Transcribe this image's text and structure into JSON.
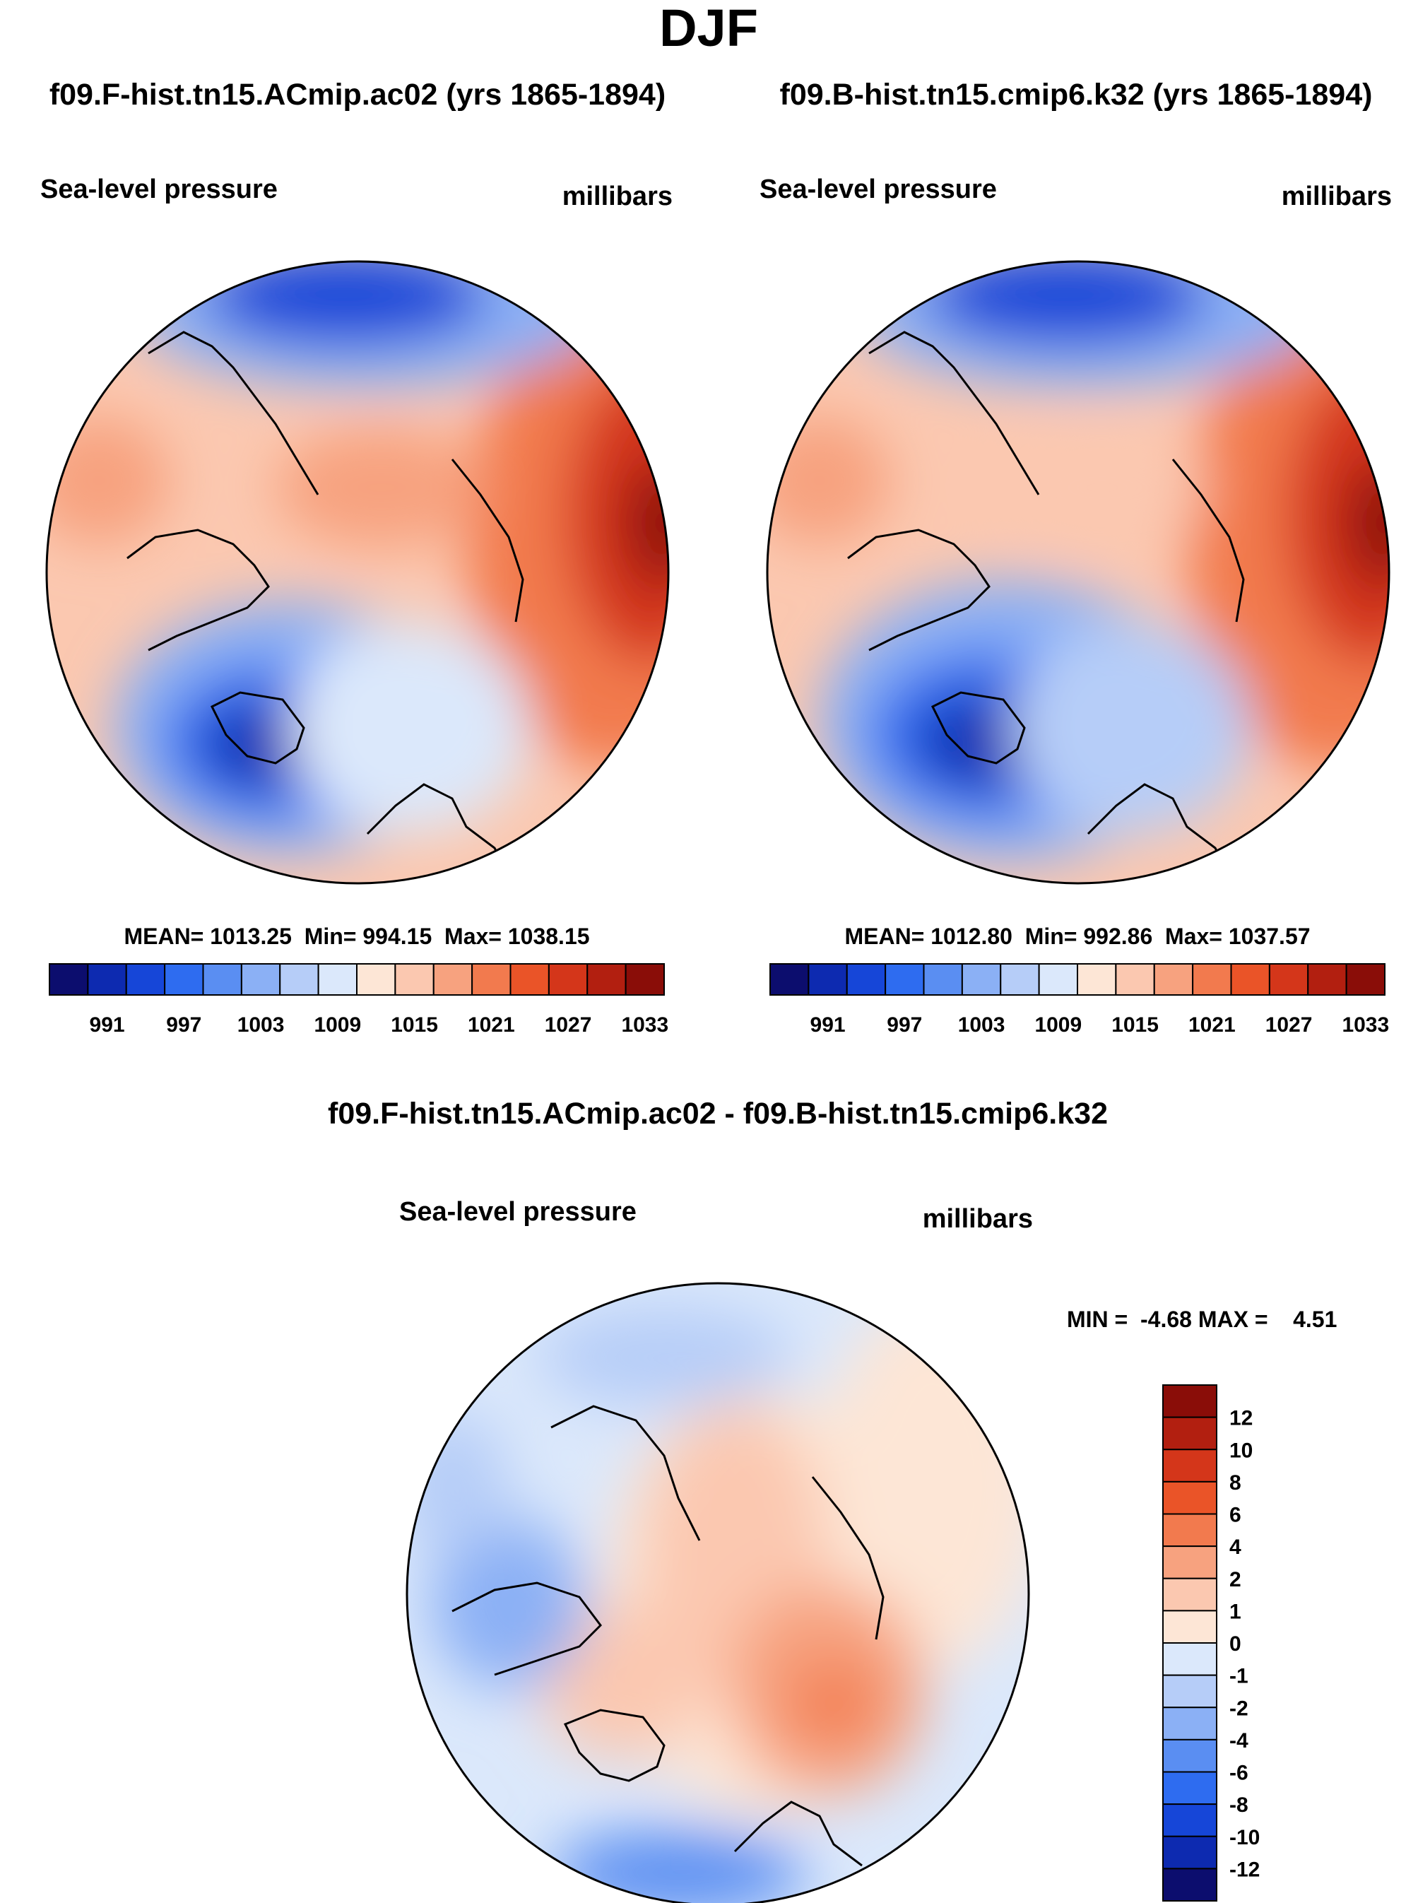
{
  "main_title": "DJF",
  "panels": [
    {
      "id": "left",
      "case_title": "f09.F-hist.tn15.ACmip.ac02 (yrs 1865-1894)",
      "variable": "Sea-level pressure",
      "units": "millibars",
      "stats": "MEAN= 1013.25  Min= 994.15  Max= 1038.15"
    },
    {
      "id": "right",
      "case_title": "f09.B-hist.tn15.cmip6.k32 (yrs 1865-1894)",
      "variable": "Sea-level pressure",
      "units": "millibars",
      "stats": "MEAN= 1012.80  Min= 992.86  Max= 1037.57"
    }
  ],
  "diff_panel": {
    "title": "f09.F-hist.tn15.ACmip.ac02 - f09.B-hist.tn15.cmip6.k32",
    "variable": "Sea-level pressure",
    "units": "millibars",
    "stats": "MIN =  -4.68 MAX =    4.51"
  },
  "chart_data": [
    {
      "type": "heatmap",
      "subtype": "polar-stereographic filled contour",
      "title": "f09.F-hist.tn15.ACmip.ac02 (yrs 1865-1894)",
      "variable": "Sea-level pressure",
      "units": "millibars",
      "mean": 1013.25,
      "min": 994.15,
      "max": 1038.15,
      "colorbar": {
        "orientation": "horizontal",
        "levels": [
          988,
          991,
          994,
          997,
          1000,
          1003,
          1006,
          1009,
          1012,
          1015,
          1018,
          1021,
          1024,
          1027,
          1030,
          1033
        ],
        "tick_labels": [
          "991",
          "997",
          "1003",
          "1009",
          "1015",
          "1021",
          "1027",
          "1033"
        ],
        "colors": [
          "#0c0d6e",
          "#0d2ab0",
          "#1646d8",
          "#2e6cf0",
          "#5a8ef2",
          "#8bb0f5",
          "#b6cdf8",
          "#dbe8fb",
          "#fde6d6",
          "#fbc8b0",
          "#f7a27f",
          "#f27a4e",
          "#ea5428",
          "#d4361a",
          "#b21f10",
          "#8a0d08"
        ]
      }
    },
    {
      "type": "heatmap",
      "subtype": "polar-stereographic filled contour",
      "title": "f09.B-hist.tn15.cmip6.k32 (yrs 1865-1894)",
      "variable": "Sea-level pressure",
      "units": "millibars",
      "mean": 1012.8,
      "min": 992.86,
      "max": 1037.57,
      "colorbar": {
        "orientation": "horizontal",
        "levels": [
          988,
          991,
          994,
          997,
          1000,
          1003,
          1006,
          1009,
          1012,
          1015,
          1018,
          1021,
          1024,
          1027,
          1030,
          1033
        ],
        "tick_labels": [
          "991",
          "997",
          "1003",
          "1009",
          "1015",
          "1021",
          "1027",
          "1033"
        ],
        "colors": [
          "#0c0d6e",
          "#0d2ab0",
          "#1646d8",
          "#2e6cf0",
          "#5a8ef2",
          "#8bb0f5",
          "#b6cdf8",
          "#dbe8fb",
          "#fde6d6",
          "#fbc8b0",
          "#f7a27f",
          "#f27a4e",
          "#ea5428",
          "#d4361a",
          "#b21f10",
          "#8a0d08"
        ]
      }
    },
    {
      "type": "heatmap",
      "subtype": "polar-stereographic difference contour",
      "title": "f09.F-hist.tn15.ACmip.ac02 - f09.B-hist.tn15.cmip6.k32",
      "variable": "Sea-level pressure",
      "units": "millibars",
      "min": -4.68,
      "max": 4.51,
      "colorbar": {
        "orientation": "vertical",
        "tick_labels": [
          "12",
          "10",
          "8",
          "6",
          "4",
          "2",
          "1",
          "0",
          "-1",
          "-2",
          "-4",
          "-6",
          "-8",
          "-10",
          "-12"
        ],
        "colors": [
          "#8a0d08",
          "#b21f10",
          "#d4361a",
          "#ea5428",
          "#f27a4e",
          "#f7a27f",
          "#fbc8b0",
          "#fde6d6",
          "#dbe8fb",
          "#b6cdf8",
          "#8bb0f5",
          "#5a8ef2",
          "#2e6cf0",
          "#1646d8",
          "#0d2ab0",
          "#0c0d6e"
        ]
      }
    }
  ]
}
